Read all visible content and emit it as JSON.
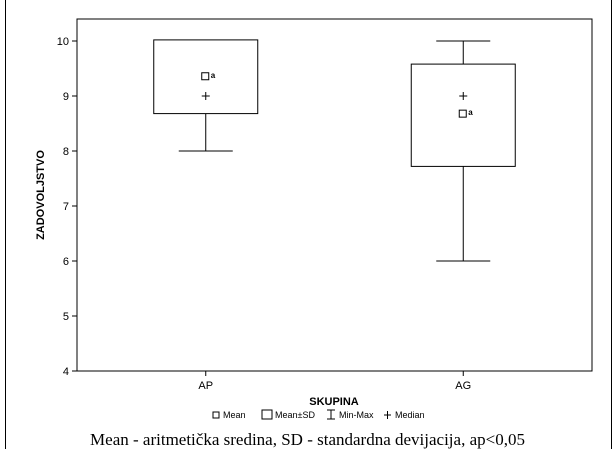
{
  "chart_data": {
    "type": "boxplot",
    "xlabel": "SKUPINA",
    "ylabel": "ZADOVOLJSTVO",
    "ylim": [
      4,
      10.4
    ],
    "yticks": [
      4,
      5,
      6,
      7,
      8,
      9,
      10
    ],
    "categories": [
      "AP",
      "AG"
    ],
    "groups": [
      {
        "category": "AP",
        "mean": 9.35,
        "mean_minus_sd": 8.68,
        "mean_plus_sd": 10.02,
        "min": 8,
        "max": 10,
        "median": 9,
        "annotation": "a"
      },
      {
        "category": "AG",
        "mean": 8.67,
        "mean_minus_sd": 7.72,
        "mean_plus_sd": 9.58,
        "min": 6,
        "max": 10,
        "median": 9,
        "annotation": "a"
      }
    ],
    "legend": [
      "Mean",
      "Mean±SD",
      "Min-Max",
      "Median"
    ],
    "grid": false
  },
  "caption": "Mean - aritmetička sredina, SD - standardna devijacija, ap<0,05"
}
